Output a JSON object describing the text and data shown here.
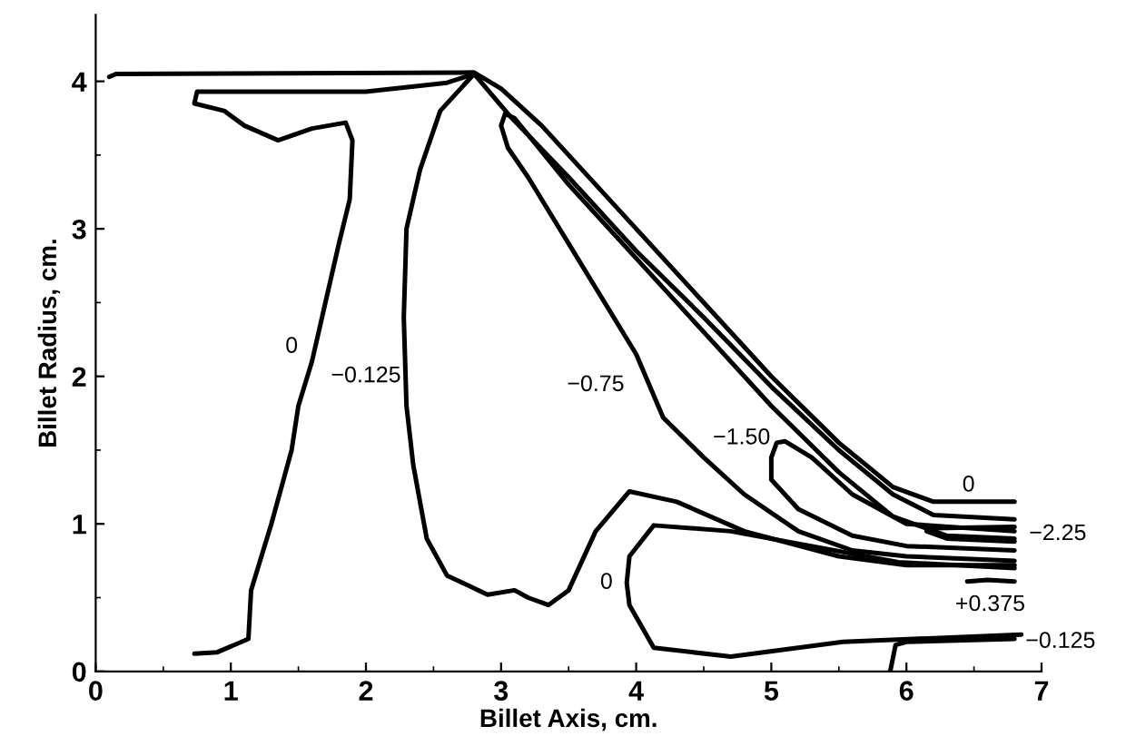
{
  "chart_data": {
    "type": "line",
    "xlabel": "Billet Axis, cm.",
    "ylabel": "Billet Radius, cm.",
    "xlim": [
      0,
      7
    ],
    "ylim": [
      0,
      4.45
    ],
    "xticks": [
      0,
      1,
      2,
      3,
      4,
      5,
      6,
      7
    ],
    "yticks": [
      0,
      1,
      2,
      3,
      4
    ],
    "grid": false,
    "legend": false,
    "marker": "none",
    "line_style": "solid",
    "series": [
      {
        "color": "#000000",
        "x": [
          0.73,
          0.9,
          1.13,
          1.15,
          1.2,
          1.3,
          1.45,
          1.5,
          1.6,
          1.7,
          1.8,
          1.88,
          1.9,
          1.85,
          1.6,
          1.35,
          1.1,
          0.95,
          0.73,
          0.75,
          1.0,
          2.0,
          2.6,
          2.8
        ],
        "values": [
          0.12,
          0.13,
          0.22,
          0.55,
          0.7,
          1.0,
          1.5,
          1.8,
          2.1,
          2.5,
          2.9,
          3.2,
          3.6,
          3.72,
          3.68,
          3.6,
          3.7,
          3.8,
          3.85,
          3.93,
          3.93,
          3.93,
          3.99,
          4.05
        ]
      },
      {
        "color": "#000000",
        "x": [
          0.1,
          0.15,
          2.8,
          3.0,
          3.3,
          4.0,
          5.0,
          5.5,
          5.9,
          6.2,
          6.8
        ],
        "values": [
          4.03,
          4.05,
          4.06,
          3.95,
          3.7,
          3.0,
          2.0,
          1.55,
          1.25,
          1.15,
          1.15
        ]
      },
      {
        "color": "#000000",
        "x": [
          6.8,
          6.2,
          5.9,
          5.5,
          5.0,
          4.5,
          4.0,
          3.5,
          3.06,
          2.8,
          2.55,
          2.4,
          2.3,
          2.28,
          2.3,
          2.35,
          2.45,
          2.6,
          2.9,
          3.1,
          3.2,
          3.35,
          3.5,
          3.7,
          3.95,
          4.3,
          4.8,
          5.5,
          6.0,
          6.8
        ],
        "values": [
          1.03,
          1.06,
          1.2,
          1.5,
          1.93,
          2.4,
          2.85,
          3.35,
          3.77,
          4.05,
          3.8,
          3.4,
          3.0,
          2.4,
          1.8,
          1.4,
          0.9,
          0.65,
          0.52,
          0.55,
          0.5,
          0.45,
          0.55,
          0.95,
          1.22,
          1.15,
          0.95,
          0.78,
          0.72,
          0.72
        ]
      },
      {
        "color": "#000000",
        "x": [
          6.8,
          6.3,
          5.9,
          5.5,
          5.0,
          4.5,
          4.0,
          3.5,
          3.1,
          3.03,
          3.0,
          3.05,
          3.2,
          3.5,
          3.8,
          4.0,
          4.2,
          4.5,
          4.8,
          5.2,
          5.6,
          6.0,
          6.8
        ],
        "values": [
          0.9,
          0.92,
          1.05,
          1.35,
          1.8,
          2.3,
          2.8,
          3.3,
          3.75,
          3.78,
          3.7,
          3.55,
          3.35,
          2.9,
          2.45,
          2.15,
          1.72,
          1.45,
          1.2,
          0.95,
          0.82,
          0.78,
          0.75
        ]
      },
      {
        "color": "#000000",
        "x": [
          6.8,
          6.0,
          5.6,
          5.3,
          5.1,
          5.04,
          5.0,
          5.0,
          5.2,
          5.6,
          6.0,
          6.8
        ],
        "values": [
          0.95,
          1.0,
          1.2,
          1.45,
          1.56,
          1.55,
          1.45,
          1.3,
          1.1,
          0.92,
          0.85,
          0.82
        ]
      },
      {
        "color": "#000000",
        "x": [
          6.8,
          6.2,
          6.15,
          6.3,
          6.8
        ],
        "values": [
          0.98,
          0.97,
          0.95,
          0.9,
          0.88
        ]
      },
      {
        "color": "#000000",
        "x": [
          6.8,
          5.94,
          4.7,
          4.13,
          3.95,
          3.93,
          3.95,
          4.13,
          4.7,
          5.53,
          6.85
        ],
        "values": [
          0.7,
          0.74,
          0.95,
          0.99,
          0.78,
          0.6,
          0.45,
          0.16,
          0.1,
          0.2,
          0.25
        ]
      },
      {
        "color": "#000000",
        "x": [
          6.45,
          6.6,
          6.8
        ],
        "values": [
          0.61,
          0.62,
          0.61
        ]
      },
      {
        "color": "#000000",
        "x": [
          5.88,
          5.92,
          6.0,
          6.8
        ],
        "values": [
          0.0,
          0.18,
          0.2,
          0.22
        ]
      }
    ],
    "annotations": [
      {
        "text": "0",
        "x": 1.45,
        "y": 2.2
      },
      {
        "text": "−0.125",
        "x": 2.0,
        "y": 2.0
      },
      {
        "text": "−0.75",
        "x": 3.7,
        "y": 1.94
      },
      {
        "text": "−1.50",
        "x": 4.78,
        "y": 1.58
      },
      {
        "text": "0",
        "x": 6.46,
        "y": 1.26
      },
      {
        "text": "−2.25",
        "x": 7.12,
        "y": 0.93
      },
      {
        "text": "0",
        "x": 3.78,
        "y": 0.6
      },
      {
        "text": "+0.375",
        "x": 6.62,
        "y": 0.45
      },
      {
        "text": "−0.125",
        "x": 7.14,
        "y": 0.2
      }
    ]
  }
}
